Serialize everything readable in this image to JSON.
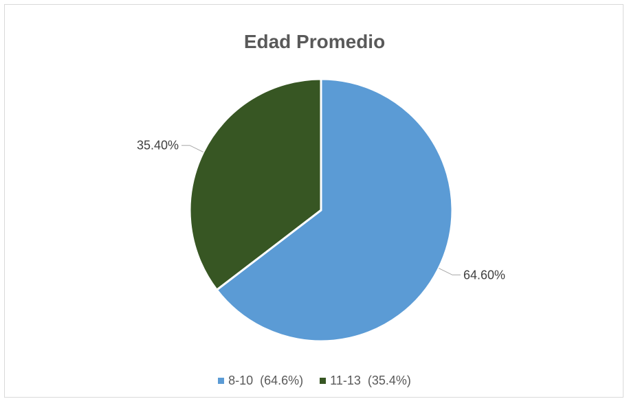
{
  "chart_data": {
    "type": "pie",
    "title": "Edad Promedio",
    "slices": [
      {
        "label": "8-10",
        "value": 64.6,
        "data_label": "64.60%",
        "legend_label": "8-10  (64.6%)",
        "color": "#5b9bd5"
      },
      {
        "label": "11-13",
        "value": 35.4,
        "data_label": "35.40%",
        "legend_label": "11-13  (35.4%)",
        "color": "#375623"
      }
    ],
    "start_angle": "12 o'clock",
    "direction": "clockwise",
    "legend_position": "bottom"
  }
}
